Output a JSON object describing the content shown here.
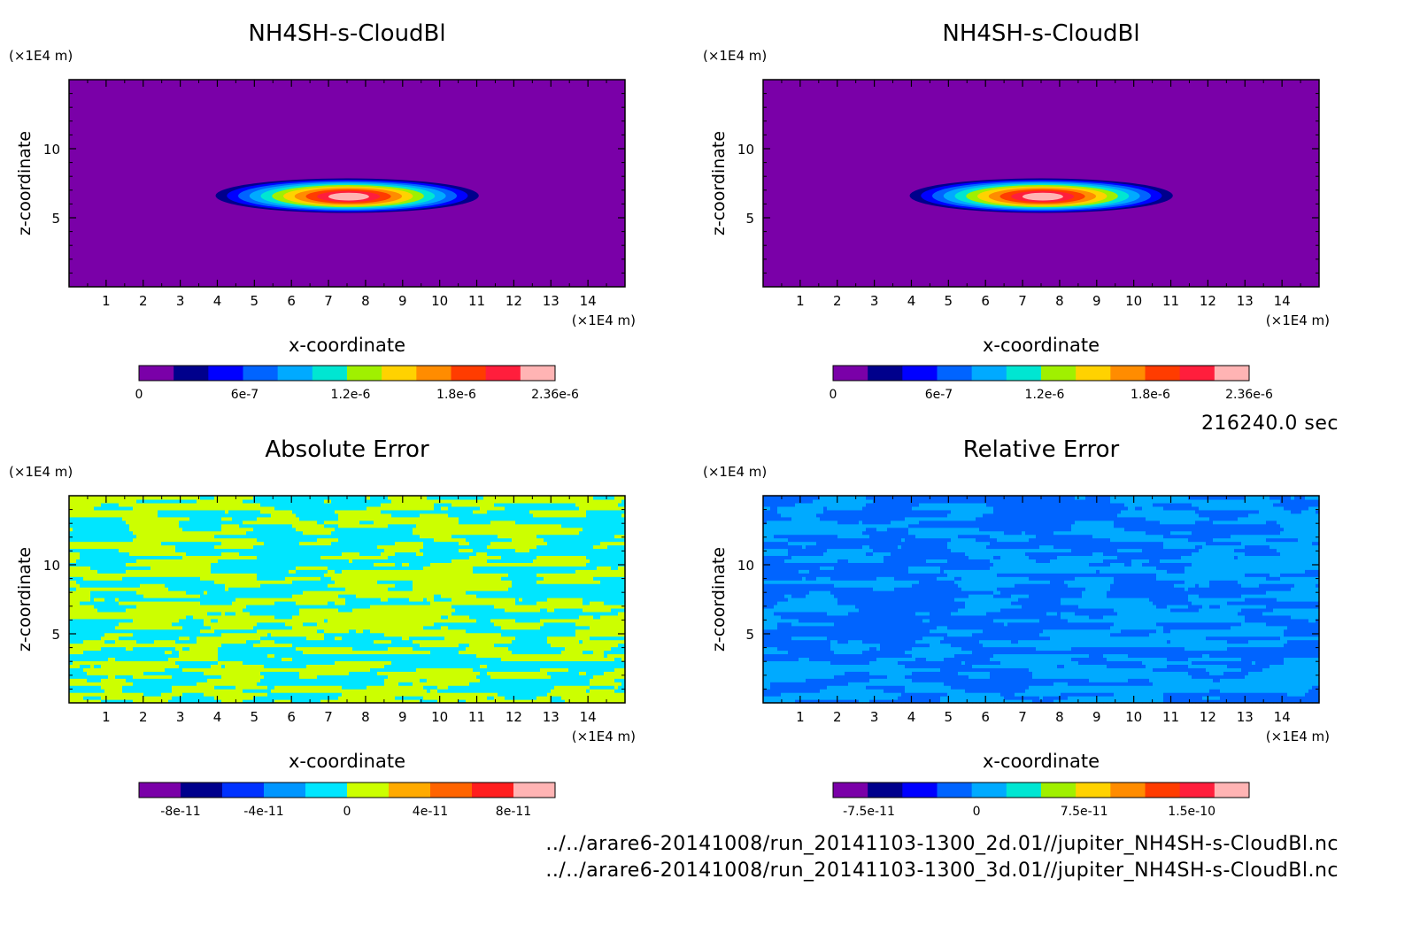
{
  "time_label": "216240.0 sec",
  "files": [
    "../../arare6-20141008/run_20141103-1300_2d.01//jupiter_NH4SH-s-CloudBl.nc",
    "../../arare6-20141008/run_20141103-1300_3d.01//jupiter_NH4SH-s-CloudBl.nc"
  ],
  "chart_data": [
    {
      "type": "heatmap",
      "title": "NH4SH-s-CloudBl",
      "xlabel": "x-coordinate",
      "ylabel": "z-coordinate",
      "x_unit": "(×1E4 m)",
      "y_unit": "(×1E4 m)",
      "xlim": [
        0,
        15
      ],
      "ylim": [
        0,
        15
      ],
      "x_ticks": [
        "1",
        "2",
        "3",
        "4",
        "5",
        "6",
        "7",
        "8",
        "9",
        "10",
        "11",
        "12",
        "13",
        "14"
      ],
      "y_ticks": [
        "5",
        "10"
      ],
      "field": "cloud",
      "colorbar": {
        "colors": [
          "#7a00a8",
          "#00008c",
          "#0000ff",
          "#0064ff",
          "#00aaff",
          "#00e6d2",
          "#a0f000",
          "#ffd200",
          "#ff8c00",
          "#ff3c00",
          "#ff1e3c",
          "#ffb4b4"
        ],
        "tick_labels": [
          "0",
          "6e-7",
          "1.2e-6",
          "1.8e-6",
          "2.36e-6"
        ],
        "tick_values": [
          0,
          6e-07,
          1.2e-06,
          1.8e-06,
          2.36e-06
        ],
        "min": 0,
        "max": 2.36e-06
      }
    },
    {
      "type": "heatmap",
      "title": "NH4SH-s-CloudBl",
      "xlabel": "x-coordinate",
      "ylabel": "z-coordinate",
      "x_unit": "(×1E4 m)",
      "y_unit": "(×1E4 m)",
      "xlim": [
        0,
        15
      ],
      "ylim": [
        0,
        15
      ],
      "x_ticks": [
        "1",
        "2",
        "3",
        "4",
        "5",
        "6",
        "7",
        "8",
        "9",
        "10",
        "11",
        "12",
        "13",
        "14"
      ],
      "y_ticks": [
        "5",
        "10"
      ],
      "field": "cloud",
      "colorbar": {
        "colors": [
          "#7a00a8",
          "#00008c",
          "#0000ff",
          "#0064ff",
          "#00aaff",
          "#00e6d2",
          "#a0f000",
          "#ffd200",
          "#ff8c00",
          "#ff3c00",
          "#ff1e3c",
          "#ffb4b4"
        ],
        "tick_labels": [
          "0",
          "6e-7",
          "1.2e-6",
          "1.8e-6",
          "2.36e-6"
        ],
        "tick_values": [
          0,
          6e-07,
          1.2e-06,
          1.8e-06,
          2.36e-06
        ],
        "min": 0,
        "max": 2.36e-06
      }
    },
    {
      "type": "heatmap",
      "title": "Absolute Error",
      "xlabel": "x-coordinate",
      "ylabel": "z-coordinate",
      "x_unit": "(×1E4 m)",
      "y_unit": "(×1E4 m)",
      "xlim": [
        0,
        15
      ],
      "ylim": [
        0,
        15
      ],
      "x_ticks": [
        "1",
        "2",
        "3",
        "4",
        "5",
        "6",
        "7",
        "8",
        "9",
        "10",
        "11",
        "12",
        "13",
        "14"
      ],
      "y_ticks": [
        "5",
        "10"
      ],
      "field": "abs_error",
      "region_colors": [
        "#00e6ff",
        "#ccff00"
      ],
      "colorbar": {
        "colors": [
          "#7a00a8",
          "#00008c",
          "#0032ff",
          "#0096ff",
          "#00e6ff",
          "#ccff00",
          "#ffaa00",
          "#ff6400",
          "#ff1e1e",
          "#ffb4b4"
        ],
        "tick_labels": [
          "-8e-11",
          "-4e-11",
          "0",
          "4e-11",
          "8e-11"
        ],
        "tick_values": [
          -8e-11,
          -4e-11,
          0,
          4e-11,
          8e-11
        ],
        "min": -1e-10,
        "max": 1e-10
      }
    },
    {
      "type": "heatmap",
      "title": "Relative Error",
      "xlabel": "x-coordinate",
      "ylabel": "z-coordinate",
      "x_unit": "(×1E4 m)",
      "y_unit": "(×1E4 m)",
      "xlim": [
        0,
        15
      ],
      "ylim": [
        0,
        15
      ],
      "x_ticks": [
        "1",
        "2",
        "3",
        "4",
        "5",
        "6",
        "7",
        "8",
        "9",
        "10",
        "11",
        "12",
        "13",
        "14"
      ],
      "y_ticks": [
        "5",
        "10"
      ],
      "field": "rel_error",
      "region_colors": [
        "#0064ff",
        "#00aaff"
      ],
      "colorbar": {
        "colors": [
          "#7a00a8",
          "#00008c",
          "#0000ff",
          "#0064ff",
          "#00aaff",
          "#00e6d2",
          "#a0f000",
          "#ffd200",
          "#ff8c00",
          "#ff3c00",
          "#ff1e3c",
          "#ffb4b4"
        ],
        "tick_labels": [
          "-7.5e-11",
          "0",
          "7.5e-11",
          "1.5e-10"
        ],
        "tick_values": [
          -7.5e-11,
          0,
          7.5e-11,
          1.5e-10
        ],
        "min": -1e-10,
        "max": 1.9e-10
      }
    }
  ]
}
